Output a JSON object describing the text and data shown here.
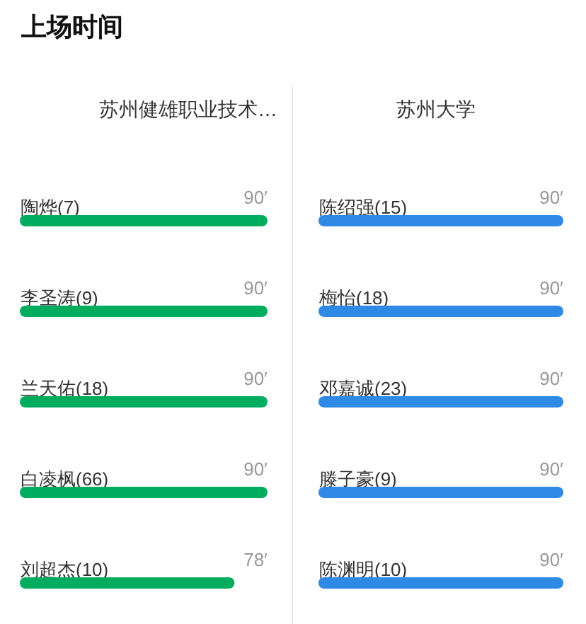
{
  "chart_data": [
    {
      "type": "bar",
      "orientation": "horizontal",
      "title": "上场时间",
      "subtitle": "苏州健雄职业技术…",
      "categories": [
        "陶烨(7)",
        "李圣涛(9)",
        "兰天佑(18)",
        "白凌枫(66)",
        "刘超杰(10)"
      ],
      "series": [
        {
          "color": "#00ad5f",
          "values": [
            90,
            90,
            90,
            90,
            78
          ],
          "value_labels": [
            "90′",
            "90′",
            "90′",
            "90′",
            "78′"
          ]
        }
      ],
      "tick_labels": "y"
    },
    {
      "type": "bar",
      "orientation": "horizontal",
      "subtitle": "苏州大学",
      "categories": [
        "陈绍强(15)",
        "梅怡(18)",
        "邓嘉诚(23)",
        "滕子豪(9)",
        "陈渊明(10)"
      ],
      "series": [
        {
          "color": "#2f8ae6",
          "values": [
            90,
            90,
            90,
            90,
            90
          ],
          "value_labels": [
            "90′",
            "90′",
            "90′",
            "90′",
            "90′"
          ]
        }
      ],
      "tick_labels": "y"
    }
  ]
}
